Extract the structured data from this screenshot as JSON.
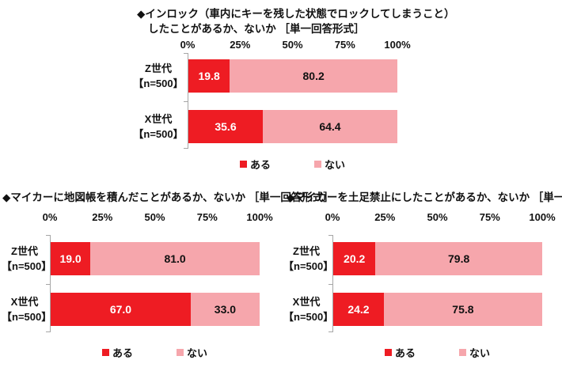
{
  "colors": {
    "aru": "#ee1c23",
    "nai": "#f6a6ac",
    "axis": "#a6a6a6"
  },
  "legend": {
    "aru_label": "ある",
    "nai_label": "ない"
  },
  "axis_ticks": [
    "0%",
    "25%",
    "50%",
    "75%",
    "100%"
  ],
  "chart_data": [
    {
      "type": "bar",
      "orientation": "horizontal",
      "stacked": true,
      "title_line1": "◆インロック（車内にキーを残した状態でロックしてしまうこと）",
      "title_line2": "したことがあるか、ないか ［単一回答形式］",
      "series_names": [
        "ある",
        "ない"
      ],
      "xlim": [
        0,
        100
      ],
      "x_ticks": [
        "0%",
        "25%",
        "50%",
        "75%",
        "100%"
      ],
      "legend_position": "bottom",
      "rows": [
        {
          "label1": "Z世代",
          "label2": "【n=500】",
          "values": [
            19.8,
            80.2
          ],
          "display": [
            "19.8",
            "80.2"
          ]
        },
        {
          "label1": "X世代",
          "label2": "【n=500】",
          "values": [
            35.6,
            64.4
          ],
          "display": [
            "35.6",
            "64.4"
          ]
        }
      ]
    },
    {
      "type": "bar",
      "orientation": "horizontal",
      "stacked": true,
      "title_line1": "◆マイカーに地図帳を積んだことがあるか、ないか ［単一回答形式］",
      "title_line2": "",
      "series_names": [
        "ある",
        "ない"
      ],
      "xlim": [
        0,
        100
      ],
      "x_ticks": [
        "0%",
        "25%",
        "50%",
        "75%",
        "100%"
      ],
      "legend_position": "bottom",
      "rows": [
        {
          "label1": "Z世代",
          "label2": "【n=500】",
          "values": [
            19.0,
            81.0
          ],
          "display": [
            "19.0",
            "81.0"
          ]
        },
        {
          "label1": "X世代",
          "label2": "【n=500】",
          "values": [
            67.0,
            33.0
          ],
          "display": [
            "67.0",
            "33.0"
          ]
        }
      ]
    },
    {
      "type": "bar",
      "orientation": "horizontal",
      "stacked": true,
      "title_line1": "◆マイカーを土足禁止にしたことがあるか、ないか ［単一回答形式］",
      "title_line2": "",
      "series_names": [
        "ある",
        "ない"
      ],
      "xlim": [
        0,
        100
      ],
      "x_ticks": [
        "0%",
        "25%",
        "50%",
        "75%",
        "100%"
      ],
      "legend_position": "bottom",
      "rows": [
        {
          "label1": "Z世代",
          "label2": "【n=500】",
          "values": [
            20.2,
            79.8
          ],
          "display": [
            "20.2",
            "79.8"
          ]
        },
        {
          "label1": "X世代",
          "label2": "【n=500】",
          "values": [
            24.2,
            75.8
          ],
          "display": [
            "24.2",
            "75.8"
          ]
        }
      ]
    }
  ]
}
